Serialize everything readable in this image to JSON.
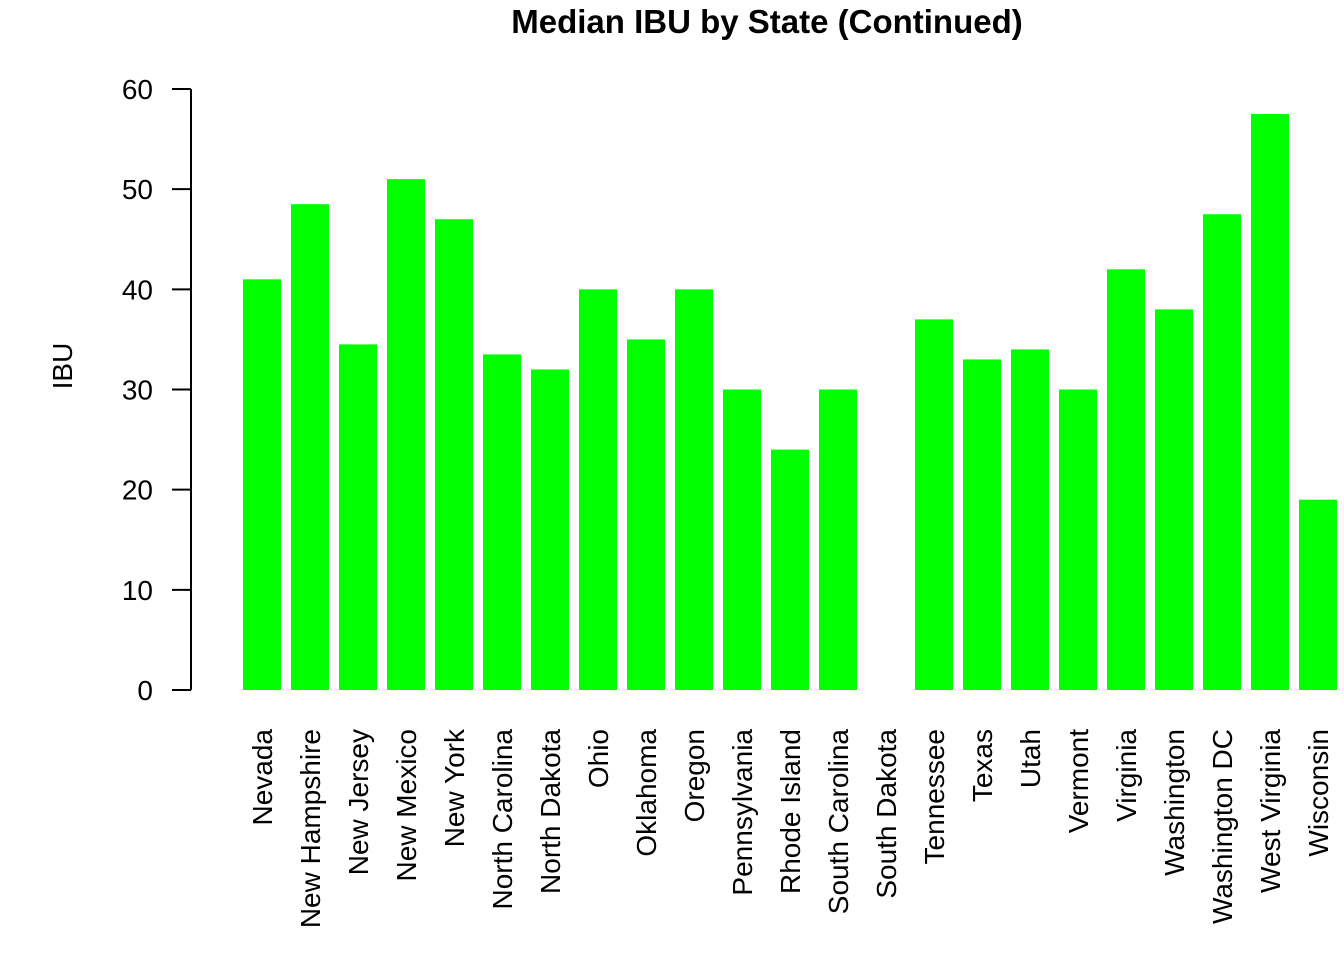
{
  "chart_data": {
    "type": "bar",
    "title": "Median IBU by State (Continued)",
    "xlabel": "",
    "ylabel": "IBU",
    "ylim": [
      0,
      60
    ],
    "yticks": [
      0,
      10,
      20,
      30,
      40,
      50,
      60
    ],
    "bar_color": "#00ff00",
    "grid": false,
    "legend": "none",
    "categories": [
      "Nevada",
      "New Hampshire",
      "New Jersey",
      "New Mexico",
      "New York",
      "North Carolina",
      "North Dakota",
      "Ohio",
      "Oklahoma",
      "Oregon",
      "Pennsylvania",
      "Rhode Island",
      "South Carolina",
      "South Dakota",
      "Tennessee",
      "Texas",
      "Utah",
      "Vermont",
      "Virginia",
      "Washington",
      "Washington DC",
      "West Virginia",
      "Wisconsin"
    ],
    "values": [
      41,
      48.5,
      34.5,
      51,
      47,
      33.5,
      32,
      40,
      35,
      40,
      30,
      24,
      30,
      null,
      37,
      33,
      34,
      30,
      42,
      38,
      47.5,
      57.5,
      19
    ]
  }
}
